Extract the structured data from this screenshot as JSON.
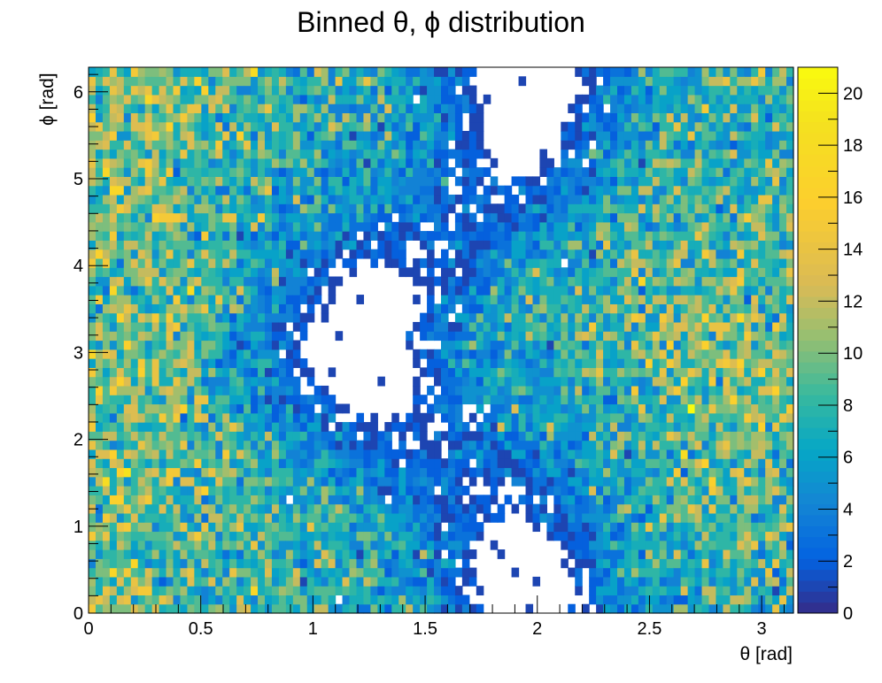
{
  "chart_data": {
    "type": "heatmap",
    "title": "Binned θ, ϕ distribution",
    "xlabel": "θ [rad]",
    "ylabel": "ϕ [rad]",
    "xlim": [
      0,
      3.14159
    ],
    "ylim": [
      0,
      6.28318
    ],
    "zlim": [
      0,
      21
    ],
    "x_ticks": [
      0,
      0.5,
      1,
      1.5,
      2,
      2.5,
      3
    ],
    "x_tick_labels": [
      "0",
      "0.5",
      "1",
      "1.5",
      "2",
      "2.5",
      "3"
    ],
    "y_ticks": [
      0,
      1,
      2,
      3,
      4,
      5,
      6
    ],
    "y_tick_labels": [
      "0",
      "1",
      "2",
      "3",
      "4",
      "5",
      "6"
    ],
    "z_ticks": [
      0,
      2,
      4,
      6,
      8,
      10,
      12,
      14,
      16,
      18,
      20
    ],
    "z_tick_labels": [
      "0",
      "2",
      "4",
      "6",
      "8",
      "10",
      "12",
      "14",
      "16",
      "18",
      "20"
    ],
    "bins_x": 100,
    "bins_y": 60,
    "colormap": "parula",
    "empty_bin_color": "#ffffff",
    "sparse_regions": [
      {
        "theta": 1.2,
        "phi": 3.1,
        "level": 0.1
      },
      {
        "theta": 1.95,
        "phi": 6.0,
        "level": 0.2
      },
      {
        "theta": 1.95,
        "phi": 0.25,
        "level": 0.2
      }
    ],
    "dense_regions": [
      {
        "theta": 0.2,
        "phi": 1.0,
        "level": 10.5
      },
      {
        "theta": 0.25,
        "phi": 5.8,
        "level": 10.5
      },
      {
        "theta": 2.8,
        "phi": 3.0,
        "level": 11
      }
    ]
  }
}
